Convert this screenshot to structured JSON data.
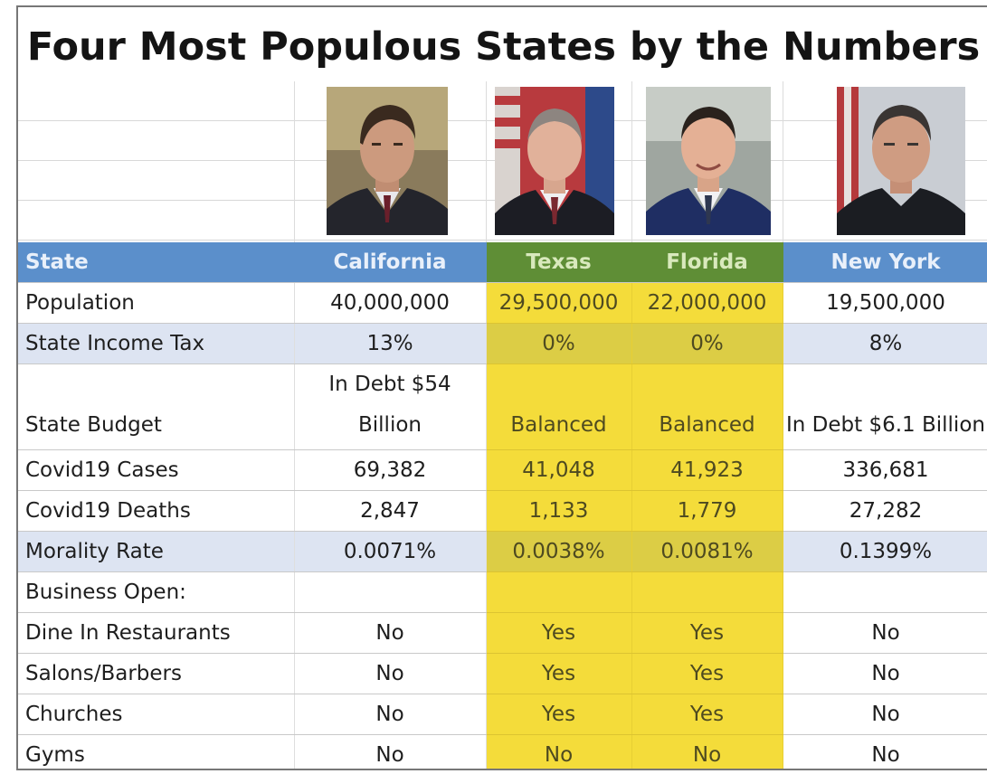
{
  "title": "Four Most Populous States by the Numbers",
  "photos": [
    {
      "label": "California governor portrait",
      "icon": "person-portrait-icon"
    },
    {
      "label": "Texas governor portrait",
      "icon": "person-portrait-icon"
    },
    {
      "label": "Florida governor portrait",
      "icon": "person-portrait-icon"
    },
    {
      "label": "New York governor portrait",
      "icon": "person-portrait-icon"
    }
  ],
  "colors": {
    "header_blue": "#5b8fcb",
    "header_green": "#5f8e36",
    "highlight_yellow": "#f4dc3a",
    "band_blue": "#dde4f2"
  },
  "table": {
    "header": {
      "label": "State",
      "states": [
        "California",
        "Texas",
        "Florida",
        "New York"
      ]
    },
    "rows": [
      {
        "label": "Population",
        "values": [
          "40,000,000",
          "29,500,000",
          "22,000,000",
          "19,500,000"
        ]
      },
      {
        "label": "State Income Tax",
        "values": [
          "13%",
          "0%",
          "0%",
          "8%"
        ]
      },
      {
        "label": "State Budget",
        "values": [
          "In Debt $54 Billion",
          "Balanced",
          "Balanced",
          "In Debt $6.1 Billion"
        ]
      },
      {
        "label": "Covid19 Cases",
        "values": [
          "69,382",
          "41,048",
          "41,923",
          "336,681"
        ]
      },
      {
        "label": "Covid19 Deaths",
        "values": [
          "2,847",
          "1,133",
          "1,779",
          "27,282"
        ]
      },
      {
        "label": "Morality Rate",
        "values": [
          "0.0071%",
          "0.0038%",
          "0.0081%",
          "0.1399%"
        ]
      },
      {
        "label": "Business Open:",
        "values": [
          "",
          "",
          "",
          ""
        ]
      },
      {
        "label": "Dine In Restaurants",
        "values": [
          "No",
          "Yes",
          "Yes",
          "No"
        ]
      },
      {
        "label": "Salons/Barbers",
        "values": [
          "No",
          "Yes",
          "Yes",
          "No"
        ]
      },
      {
        "label": "Churches",
        "values": [
          "No",
          "Yes",
          "Yes",
          "No"
        ]
      },
      {
        "label": "Gyms",
        "values": [
          "No",
          "No",
          "No",
          "No"
        ]
      }
    ]
  }
}
